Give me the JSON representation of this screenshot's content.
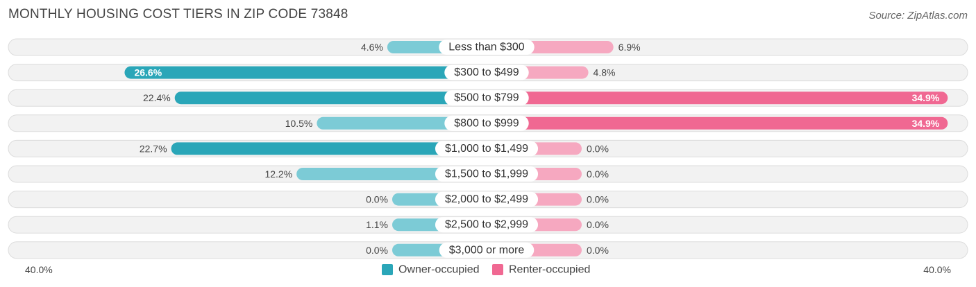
{
  "title": "MONTHLY HOUSING COST TIERS IN ZIP CODE 73848",
  "source": "Source: ZipAtlas.com",
  "chart_data": {
    "type": "bar",
    "orientation": "horizontal-diverging",
    "categories": [
      "Less than $300",
      "$300 to $499",
      "$500 to $799",
      "$800 to $999",
      "$1,000 to $1,499",
      "$1,500 to $1,999",
      "$2,000 to $2,499",
      "$2,500 to $2,999",
      "$3,000 or more"
    ],
    "series": [
      {
        "name": "Owner-occupied",
        "color": "#2aa6b8",
        "values": [
          4.6,
          26.6,
          22.4,
          10.5,
          22.7,
          12.2,
          0.0,
          1.1,
          0.0
        ]
      },
      {
        "name": "Renter-occupied",
        "color": "#f06892",
        "values": [
          6.9,
          4.8,
          34.9,
          34.9,
          0.0,
          0.0,
          0.0,
          0.0,
          0.0
        ]
      }
    ],
    "value_labels": {
      "owner": [
        "4.6%",
        "26.6%",
        "22.4%",
        "10.5%",
        "22.7%",
        "12.2%",
        "0.0%",
        "1.1%",
        "0.0%"
      ],
      "renter": [
        "6.9%",
        "4.8%",
        "34.9%",
        "34.9%",
        "0.0%",
        "0.0%",
        "0.0%",
        "0.0%",
        "0.0%"
      ]
    },
    "xlim": [
      -40,
      40
    ],
    "axis_labels": {
      "left": "40.0%",
      "right": "40.0%"
    },
    "legend_position": "bottom-center"
  }
}
